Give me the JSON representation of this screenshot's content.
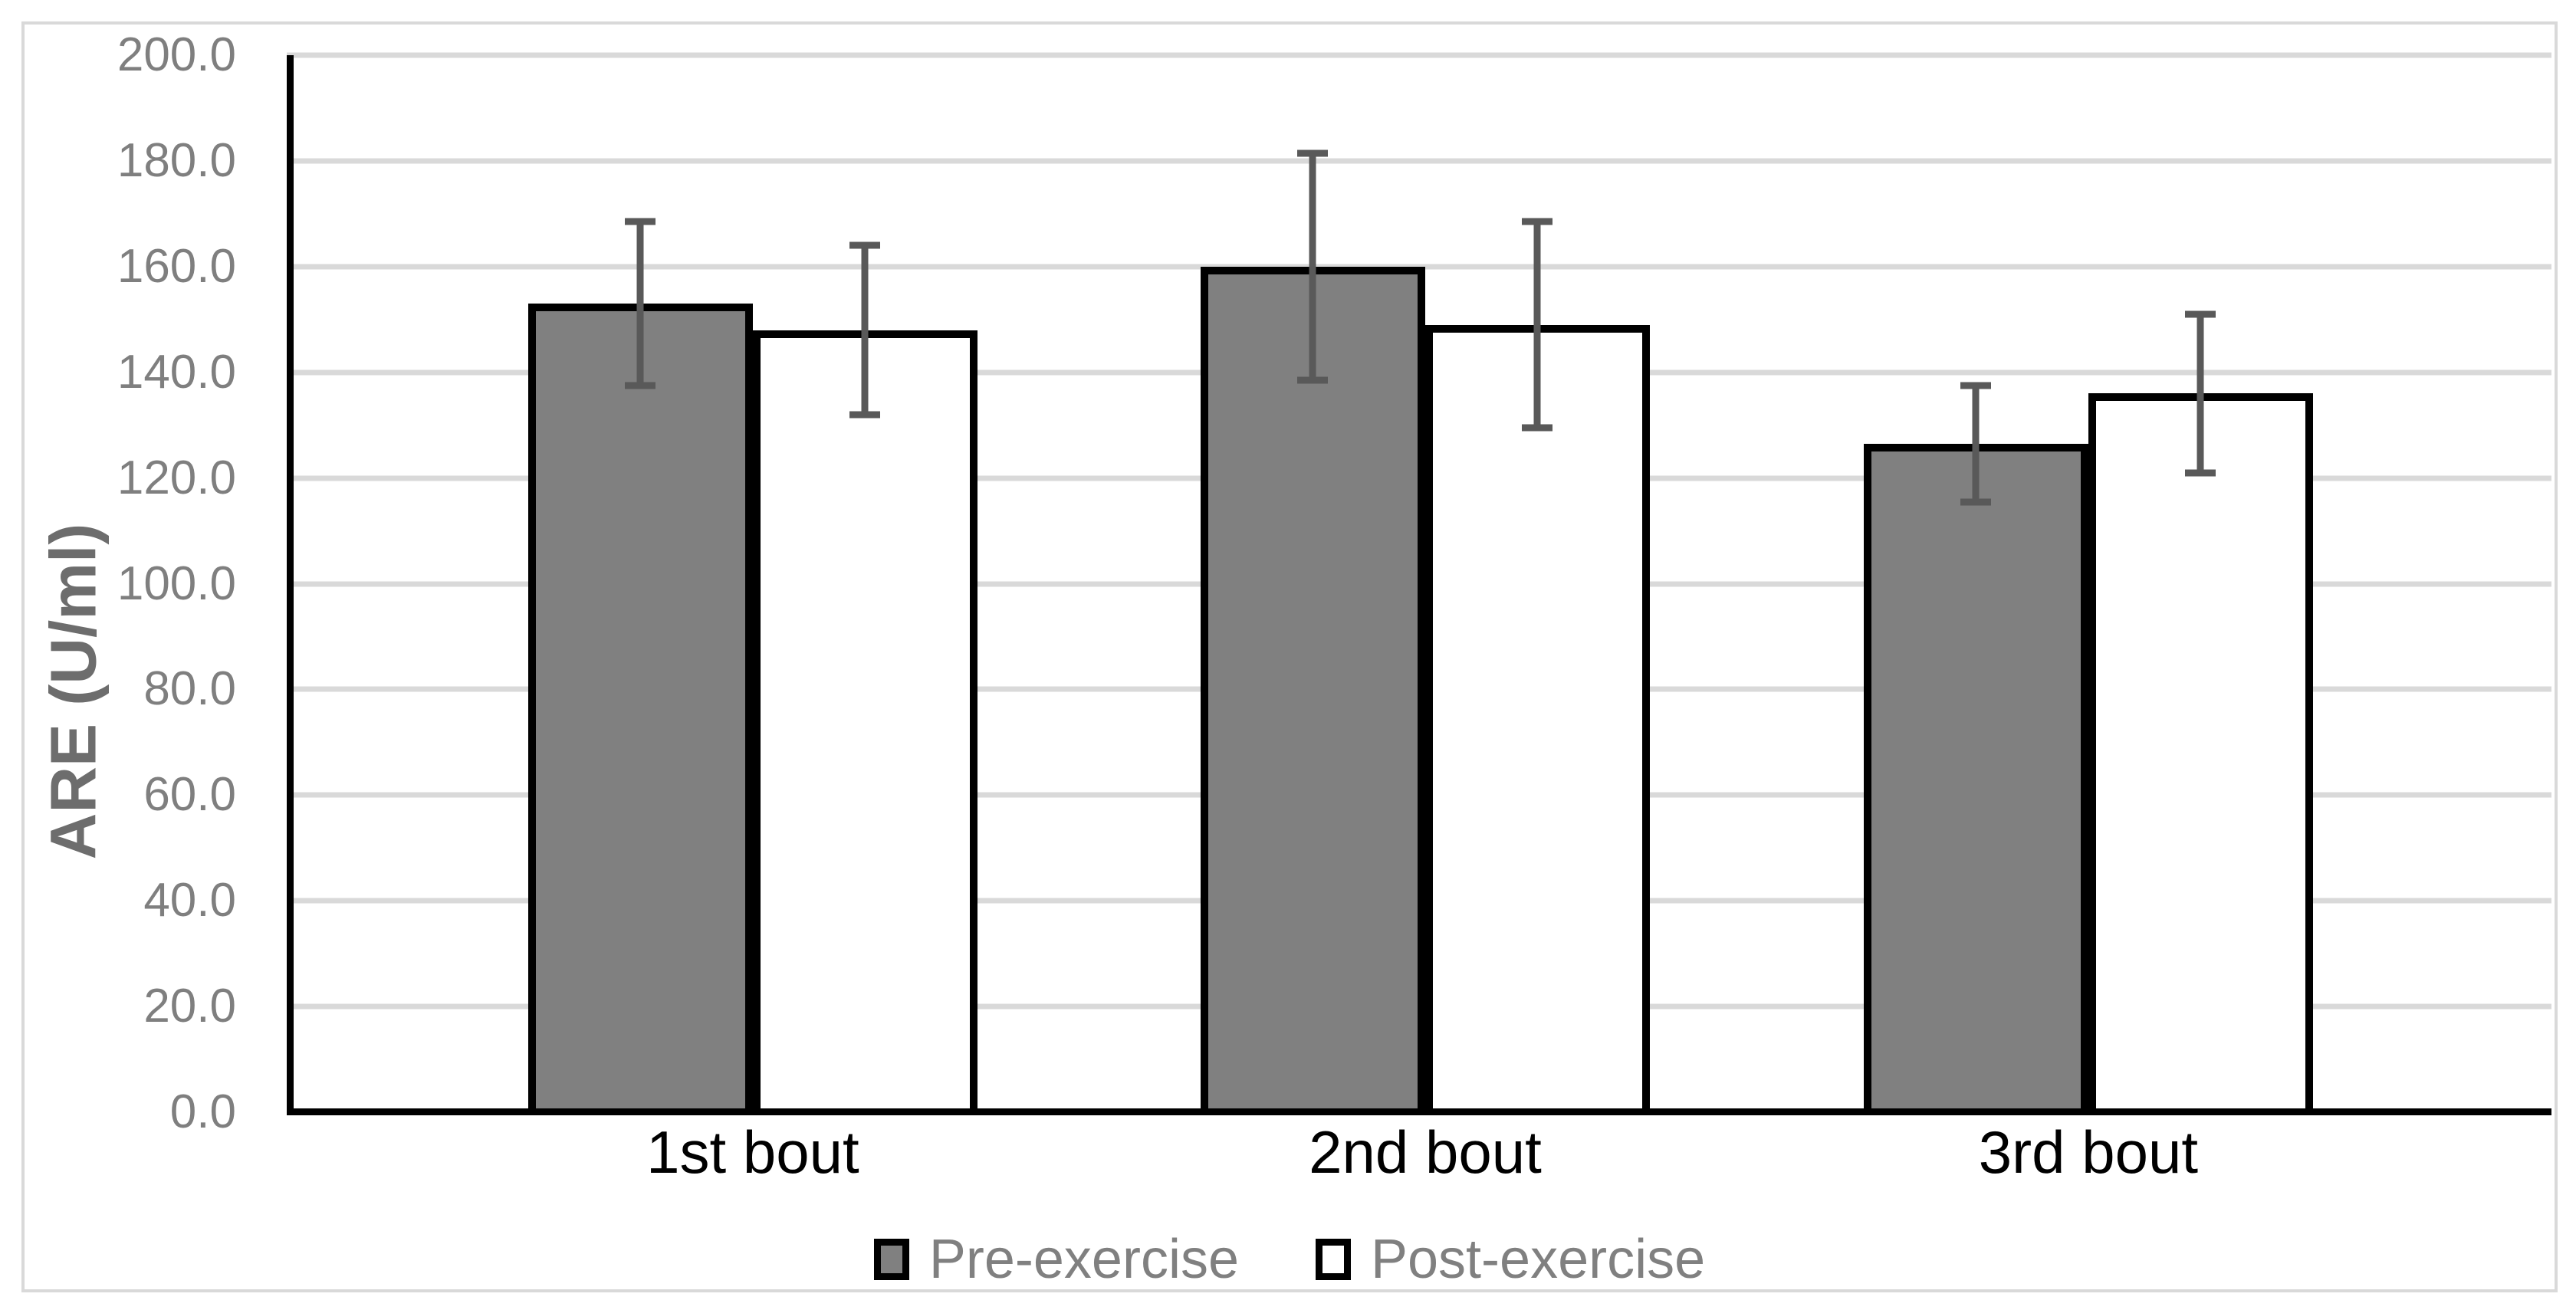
{
  "chart_data": {
    "type": "bar",
    "title": "",
    "xlabel": "",
    "ylabel": "ARE (U/ml)",
    "ylim": [
      0,
      200
    ],
    "ytick_step": 20,
    "y_tick_labels": [
      "200.0",
      "180.0",
      "160.0",
      "140.0",
      "120.0",
      "100.0",
      "80.0",
      "60.0",
      "40.0",
      "20.0",
      "0.0"
    ],
    "categories": [
      "1st bout",
      "2nd bout",
      "3rd bout"
    ],
    "series": [
      {
        "name": "Pre-exercise",
        "fill": "#808080",
        "values": [
          153.0,
          160.0,
          126.5
        ],
        "errors": [
          15.5,
          21.5,
          11.0
        ]
      },
      {
        "name": "Post-exercise",
        "fill": "#FFFFFF",
        "values": [
          148.0,
          149.0,
          136.0
        ],
        "errors": [
          16.0,
          19.5,
          15.0
        ]
      }
    ],
    "error_bars": "symmetric, dark gray caps",
    "grid": true,
    "legend_position": "bottom",
    "layout": {
      "group_centers_pct": [
        20.58,
        50.27,
        79.55
      ],
      "bar_width_pct": 9.92
    },
    "colors": {
      "pre_fill": "#808080",
      "post_fill": "#FFFFFF",
      "bar_border": "#000000",
      "error_bar": "#595959",
      "gridline": "#D9D9D9",
      "axis_line": "#000000",
      "y_tick_text": "#7F7F7F",
      "x_tick_text": "#000000",
      "y_title_text": "#6D6D6D",
      "legend_text": "#808080",
      "figure_border": "#D9D9D9",
      "background": "#FFFFFF"
    }
  }
}
